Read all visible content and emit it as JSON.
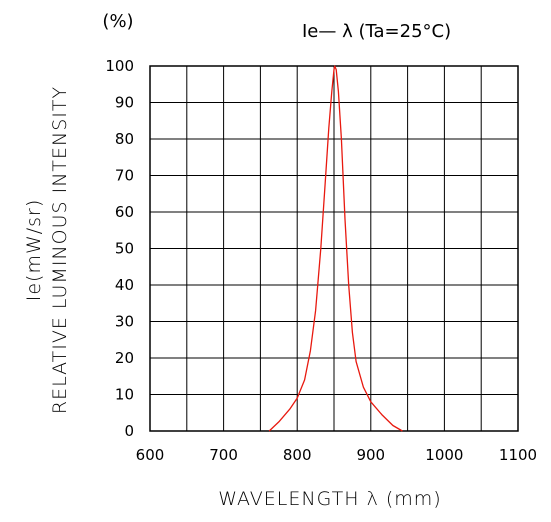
{
  "chart_data": {
    "type": "line",
    "title": "Ie— λ (Ta=25°C)",
    "ylabel_lines": [
      "Ie(mW/sr)",
      "RELATIVE LUMINOUS INTENSITY"
    ],
    "y_unit": "(%)",
    "xlabel": "WAVELENGTH λ (mm)",
    "xlim": [
      600,
      1100
    ],
    "ylim": [
      0,
      100
    ],
    "x_ticks": [
      600,
      700,
      800,
      900,
      1000,
      1100
    ],
    "y_ticks": [
      0,
      10,
      20,
      30,
      40,
      50,
      60,
      70,
      80,
      90,
      100
    ],
    "grid": true,
    "series": [
      {
        "color": "#e8190f",
        "x": [
          762,
          775,
          790,
          800,
          810,
          818,
          825,
          832,
          838,
          843,
          847,
          850,
          851,
          853,
          856,
          860,
          865,
          870,
          875,
          880,
          890,
          900,
          915,
          930,
          943
        ],
        "y": [
          0,
          2.5,
          6,
          9,
          14,
          22,
          33,
          50,
          68,
          83,
          93,
          99,
          100,
          99,
          93,
          80,
          58,
          40,
          27,
          19,
          12,
          8,
          4.5,
          1.5,
          0
        ]
      }
    ]
  }
}
